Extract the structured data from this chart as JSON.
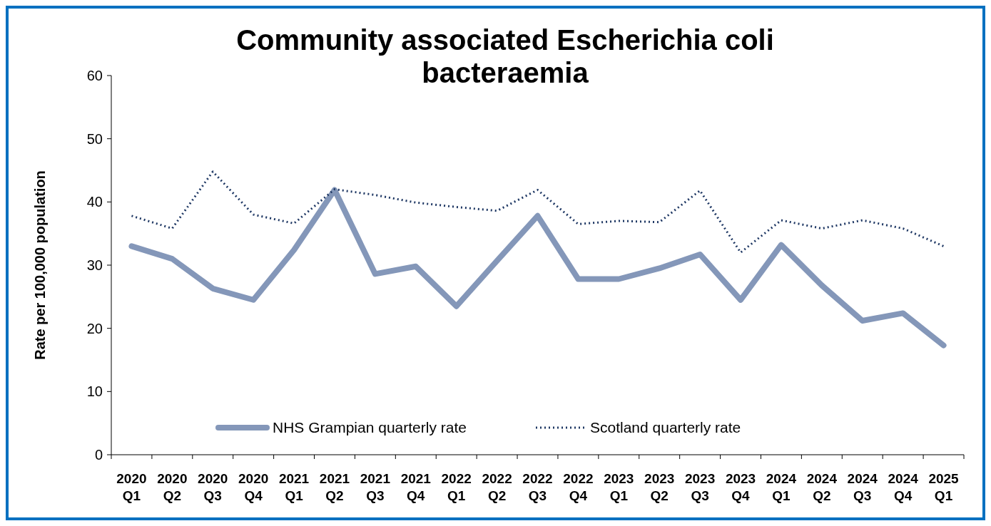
{
  "chart_data": {
    "type": "line",
    "title": "Community associated Escherichia coli bacteraemia",
    "ylabel": "Rate per 100,000 population",
    "categories": [
      "2020 Q1",
      "2020 Q2",
      "2020 Q3",
      "2020 Q4",
      "2021 Q1",
      "2021 Q2",
      "2021 Q3",
      "2021 Q4",
      "2022 Q1",
      "2022 Q2",
      "2022 Q3",
      "2022 Q4",
      "2023 Q1",
      "2023 Q2",
      "2023 Q3",
      "2023 Q4",
      "2024 Q1",
      "2024 Q2",
      "2024 Q3",
      "2024 Q4",
      "2025 Q1"
    ],
    "series": [
      {
        "name": "NHS Grampian quarterly rate",
        "color": "#8497b9",
        "line_style": "solid",
        "values": [
          33.0,
          31.0,
          26.3,
          24.5,
          32.4,
          41.9,
          28.6,
          29.8,
          23.5,
          30.7,
          37.8,
          27.8,
          27.8,
          29.5,
          31.7,
          24.5,
          33.2,
          26.8,
          21.2,
          22.4,
          17.3
        ]
      },
      {
        "name": "Scotland quarterly rate",
        "color": "#1f3864",
        "line_style": "dotted",
        "values": [
          37.8,
          35.8,
          44.8,
          38.0,
          36.6,
          42.0,
          41.1,
          39.9,
          39.2,
          38.6,
          41.9,
          36.5,
          37.0,
          36.8,
          41.8,
          32.0,
          37.1,
          35.8,
          37.1,
          35.8,
          33.0
        ]
      }
    ],
    "ylim": [
      0,
      60
    ],
    "yticks": [
      0,
      10,
      20,
      30,
      40,
      50,
      60
    ],
    "grid": false,
    "legend": "bottom",
    "marker": "none"
  }
}
